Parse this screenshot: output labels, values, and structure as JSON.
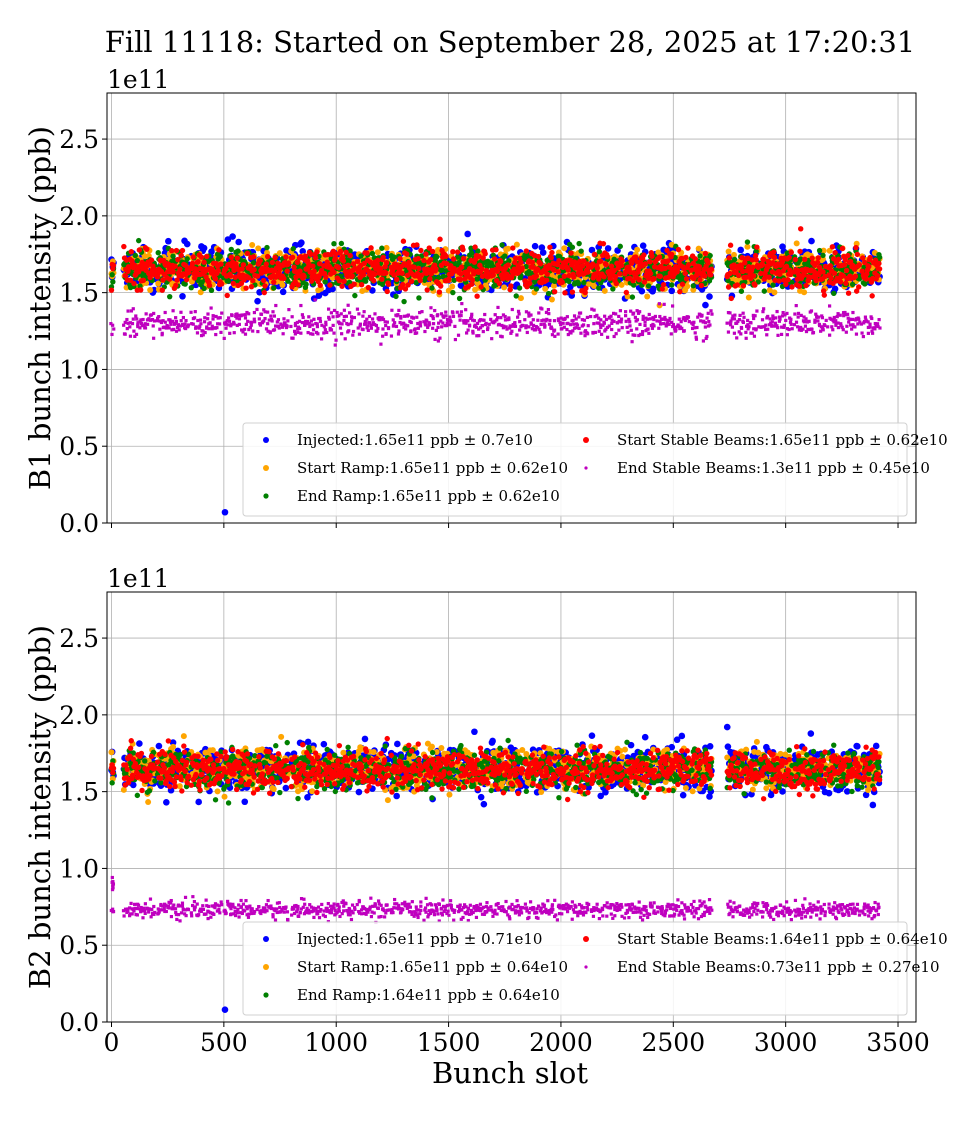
{
  "chart_data": [
    {
      "type": "scatter",
      "title": "Fill 11118: Started on September 28, 2025 at 17:20:31",
      "xlabel": "",
      "ylabel": "B1 bunch intensity (ppb)",
      "y_offset_text": "1e11",
      "xlim": [
        -20,
        3580
      ],
      "ylim": [
        0,
        2.8
      ],
      "yticks": [
        "0.0",
        "0.5",
        "1.0",
        "1.5",
        "2.0",
        "2.5"
      ],
      "xticks": [
        "0",
        "500",
        "1000",
        "1500",
        "2000",
        "2500",
        "3000",
        "3500"
      ],
      "grid": true,
      "legend_position": "lower-right",
      "series": [
        {
          "name": "Injected:1.65e11 ppb ± 0.7e10",
          "mean": 1.65,
          "std": 0.07,
          "color": "#0000ff"
        },
        {
          "name": "Start Ramp:1.65e11 ppb ± 0.62e10",
          "mean": 1.65,
          "std": 0.062,
          "color": "#ffa500"
        },
        {
          "name": "End Ramp:1.65e11 ppb ± 0.62e10",
          "mean": 1.65,
          "std": 0.062,
          "color": "#008000"
        },
        {
          "name": "Start Stable Beams:1.65e11 ppb ± 0.62e10",
          "mean": 1.65,
          "std": 0.062,
          "color": "#ff0000"
        },
        {
          "name": "End Stable Beams:1.3e11 ppb ± 0.45e10",
          "mean": 1.3,
          "std": 0.045,
          "color": "#bf00bf"
        }
      ],
      "outliers": [
        {
          "series": "Injected",
          "x": 505,
          "y": 0.07
        }
      ]
    },
    {
      "type": "scatter",
      "xlabel": "Bunch slot",
      "ylabel": "B2 bunch intensity (ppb)",
      "y_offset_text": "1e11",
      "xlim": [
        -20,
        3580
      ],
      "ylim": [
        0,
        2.8
      ],
      "yticks": [
        "0.0",
        "0.5",
        "1.0",
        "1.5",
        "2.0",
        "2.5"
      ],
      "xticks": [
        "0",
        "500",
        "1000",
        "1500",
        "2000",
        "2500",
        "3000",
        "3500"
      ],
      "grid": true,
      "legend_position": "lower-right",
      "series": [
        {
          "name": "Injected:1.65e11 ppb ± 0.71e10",
          "mean": 1.65,
          "std": 0.071,
          "color": "#0000ff"
        },
        {
          "name": "Start Ramp:1.65e11 ppb ± 0.64e10",
          "mean": 1.65,
          "std": 0.064,
          "color": "#ffa500"
        },
        {
          "name": "End Ramp:1.64e11 ppb ± 0.64e10",
          "mean": 1.64,
          "std": 0.064,
          "color": "#008000"
        },
        {
          "name": "Start Stable Beams:1.64e11 ppb ± 0.64e10",
          "mean": 1.64,
          "std": 0.064,
          "color": "#ff0000"
        },
        {
          "name": "End Stable Beams:0.73e11 ppb ± 0.27e10",
          "mean": 0.73,
          "std": 0.027,
          "color": "#bf00bf"
        }
      ],
      "outliers": [
        {
          "series": "Injected",
          "x": 505,
          "y": 0.08
        },
        {
          "series": "End Stable Beams",
          "x": 3,
          "y": 0.9
        }
      ]
    }
  ],
  "trains": [
    [
      0,
      10
    ],
    [
      55,
      195
    ],
    [
      205,
      345
    ],
    [
      355,
      490
    ],
    [
      500,
      640
    ],
    [
      650,
      790
    ],
    [
      800,
      935
    ],
    [
      945,
      1085
    ],
    [
      1095,
      1235
    ],
    [
      1245,
      1380
    ],
    [
      1390,
      1530
    ],
    [
      1540,
      1680
    ],
    [
      1690,
      1830
    ],
    [
      1840,
      1975
    ],
    [
      1985,
      2125
    ],
    [
      2135,
      2275
    ],
    [
      2285,
      2420
    ],
    [
      2430,
      2570
    ],
    [
      2580,
      2670
    ],
    [
      2740,
      2880
    ],
    [
      2890,
      3030
    ],
    [
      3040,
      3180
    ],
    [
      3190,
      3330
    ],
    [
      3340,
      3420
    ]
  ]
}
